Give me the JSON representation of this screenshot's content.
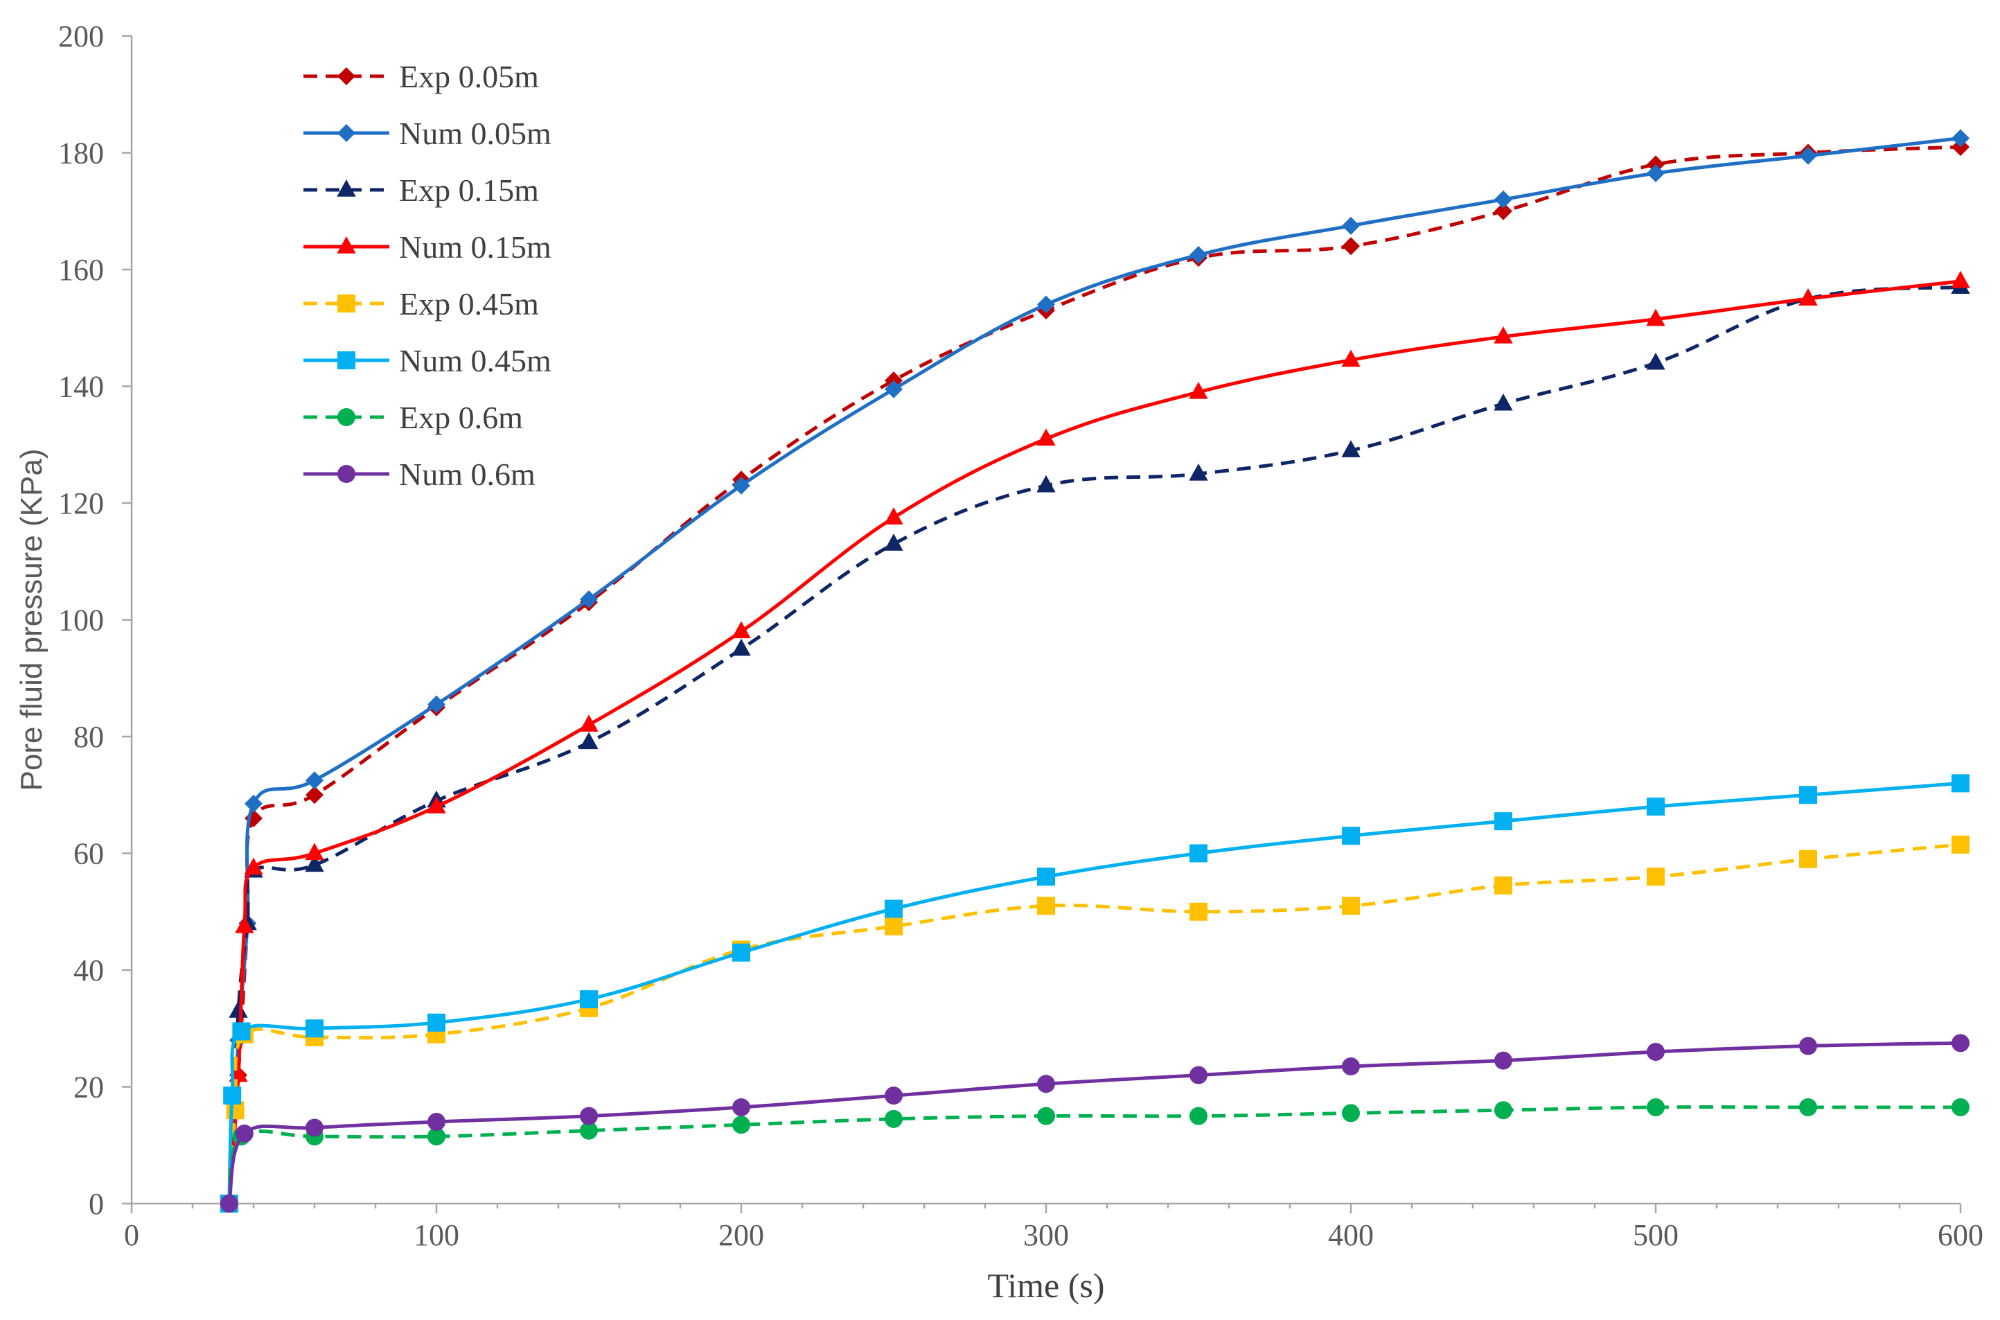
{
  "chart_data": {
    "type": "line",
    "title": "",
    "xlabel": "Time (s)",
    "ylabel": "Pore fluid pressure (KPa)",
    "xlim": [
      0,
      600
    ],
    "ylim": [
      0,
      200
    ],
    "xticks": [
      0,
      100,
      200,
      300,
      400,
      500,
      600
    ],
    "yticks": [
      0,
      20,
      40,
      60,
      80,
      100,
      120,
      140,
      160,
      180,
      200
    ],
    "xtick_labels": [
      "0",
      "100",
      "200",
      "300",
      "400",
      "500",
      "600"
    ],
    "ytick_labels": [
      "0",
      "20",
      "40",
      "60",
      "80",
      "100",
      "120",
      "140",
      "160",
      "180",
      "200"
    ],
    "grid": false,
    "legend_position": "top-left",
    "series": [
      {
        "name": "Exp 0.05m",
        "color": "#c00000",
        "dash": "dashed",
        "marker": "diamond",
        "x": [
          32,
          35,
          38,
          40,
          60,
          100,
          150,
          200,
          250,
          300,
          350,
          400,
          450,
          500,
          550,
          600
        ],
        "y": [
          0,
          22,
          48,
          66,
          70,
          85,
          103,
          124,
          141,
          153,
          162,
          164,
          170,
          178,
          180,
          181
        ]
      },
      {
        "name": "Num 0.05m",
        "color": "#1f6fc5",
        "dash": "solid",
        "marker": "diamond",
        "x": [
          32,
          35,
          38,
          40,
          60,
          100,
          150,
          200,
          250,
          300,
          350,
          400,
          450,
          500,
          550,
          600
        ],
        "y": [
          0,
          28,
          48,
          68.5,
          72.5,
          85.5,
          103.5,
          123,
          139.5,
          154,
          162.5,
          167.5,
          172,
          176.5,
          179.5,
          182.5
        ]
      },
      {
        "name": "Exp 0.15m",
        "color": "#0e2566",
        "dash": "dashed",
        "marker": "triangle",
        "x": [
          32,
          35,
          38,
          40,
          60,
          100,
          150,
          200,
          250,
          300,
          350,
          400,
          450,
          500,
          550,
          600
        ],
        "y": [
          0,
          33,
          48,
          57,
          58,
          69,
          79,
          95,
          113,
          123,
          125,
          129,
          137,
          144,
          155,
          157
        ]
      },
      {
        "name": "Num 0.15m",
        "color": "#ff0000",
        "dash": "solid",
        "marker": "triangle",
        "x": [
          32,
          35,
          37,
          40,
          60,
          100,
          150,
          200,
          250,
          300,
          350,
          400,
          450,
          500,
          550,
          600
        ],
        "y": [
          0,
          22,
          47.5,
          57.5,
          60,
          68,
          82,
          98,
          117.5,
          131,
          139,
          144.5,
          148.5,
          151.5,
          155,
          158
        ]
      },
      {
        "name": "Exp 0.45m",
        "color": "#ffc000",
        "dash": "dashed",
        "marker": "square",
        "x": [
          32,
          34,
          37,
          60,
          100,
          150,
          200,
          250,
          300,
          350,
          400,
          450,
          500,
          550,
          600
        ],
        "y": [
          0,
          16,
          29,
          28.5,
          29,
          33.5,
          43.5,
          47.5,
          51,
          50,
          51,
          54.5,
          56,
          59,
          61.5
        ]
      },
      {
        "name": "Num 0.45m",
        "color": "#00b0f0",
        "dash": "solid",
        "marker": "square",
        "x": [
          32,
          33,
          36,
          60,
          100,
          150,
          200,
          250,
          300,
          350,
          400,
          450,
          500,
          550,
          600
        ],
        "y": [
          0,
          18.5,
          29.5,
          30,
          31,
          35,
          43,
          50.5,
          56,
          60,
          63,
          65.5,
          68,
          70,
          72
        ]
      },
      {
        "name": "Exp 0.6m",
        "color": "#00b050",
        "dash": "dashed",
        "marker": "circle",
        "x": [
          32,
          36,
          60,
          100,
          150,
          200,
          250,
          300,
          350,
          400,
          450,
          500,
          550,
          600
        ],
        "y": [
          0,
          11.5,
          11.5,
          11.5,
          12.5,
          13.5,
          14.5,
          15,
          15,
          15.5,
          16,
          16.5,
          16.5,
          16.5
        ]
      },
      {
        "name": "Num 0.6m",
        "color": "#7030a0",
        "dash": "solid",
        "marker": "circle",
        "x": [
          32,
          37,
          60,
          100,
          150,
          200,
          250,
          300,
          350,
          400,
          450,
          500,
          550,
          600
        ],
        "y": [
          0,
          12,
          13,
          14,
          15,
          16.5,
          18.5,
          20.5,
          22,
          23.5,
          24.5,
          26,
          27,
          27.5
        ]
      }
    ]
  }
}
